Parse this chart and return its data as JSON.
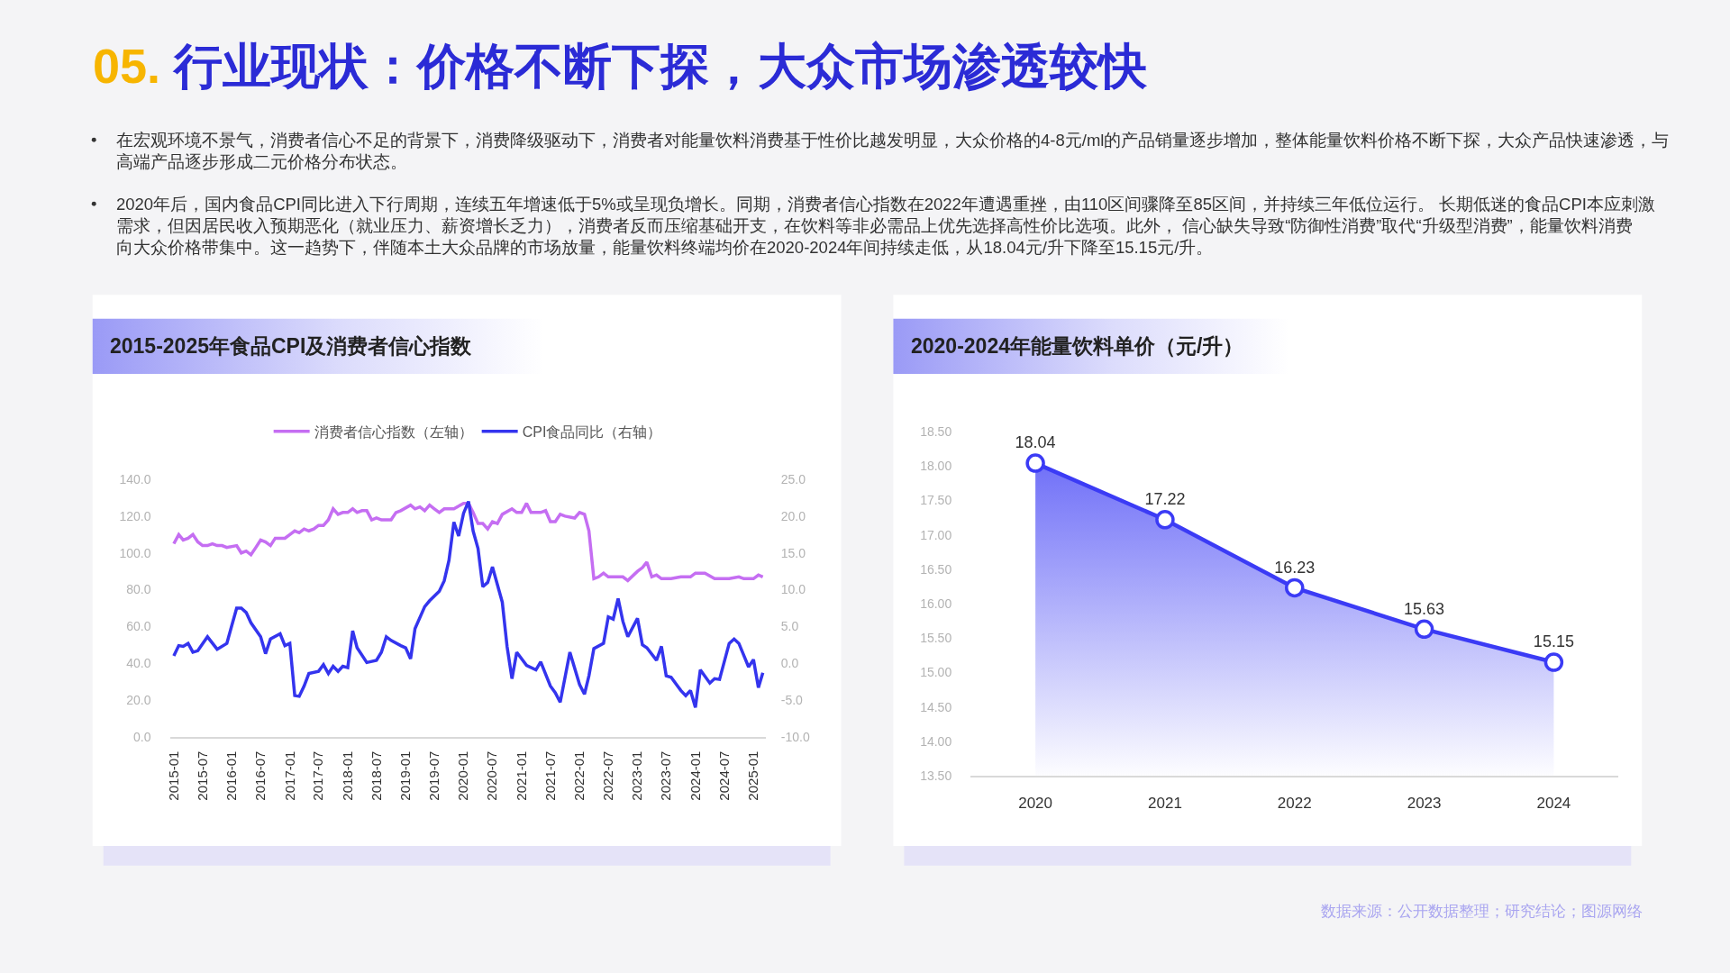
{
  "chart_data": [
    {
      "type": "other",
      "title": "05. 行业现状：价格不断下探，大众市场渗透较快",
      "annotations": [
        "在宏观环境不景气，消费者信心不足的背景下，消费降级驱动下，消费者对能量饮料消费基于性价比越发明显，大众价格的4-8元/ml的产品销量逐步增加，整体能量饮料价格不断下探，大众产品快速渗透，与高端产品逐步形成二元价格分布状态。",
        "2020年后，国内食品CPI同比进入下行周期，连续五年增速低于5%或呈现负增长。同期，消费者信心指数在2022年遭遇重挫，由110区间骤降至85区间，并持续三年低位运行。 长期低迷的食品CPI本应刺激需求，但因居民收入预期恶化（就业压力、薪资增长乏力），消费者反而压缩基础开支，在饮料等非必需品上优先选择高性价比选项。此外， 信心缺失导致“防御性消费”取代“升级型消费”，能量饮料消费向大众价格带集中。这一趋势下，伴随本土大众品牌的市场放量，能量饮料终端均价在2020-2024年间持续走低，从18.04元/升下降至15.15元/升。"
      ]
    },
    {
      "type": "line",
      "title": "2015-2025年食品CPI及消费者信心指数",
      "legend": "top",
      "series": [
        {
          "name": "消费者信心指数（左轴）",
          "color": "#c56ef2",
          "x": [
            "2015-01",
            "2015-02",
            "2015-03",
            "2015-04",
            "2015-05",
            "2015-06",
            "2015-07",
            "2015-08",
            "2015-09",
            "2015-10",
            "2015-11",
            "2015-12",
            "2016-02",
            "2016-03",
            "2016-04",
            "2016-05",
            "2016-06",
            "2016-07",
            "2016-08",
            "2016-09",
            "2016-10",
            "2016-11",
            "2016-12",
            "2017-01",
            "2017-02",
            "2017-03",
            "2017-04",
            "2017-05",
            "2017-06",
            "2017-07",
            "2017-08",
            "2017-09",
            "2017-10",
            "2017-11",
            "2017-12",
            "2018-01",
            "2018-02",
            "2018-03",
            "2018-04",
            "2018-05",
            "2018-06",
            "2018-07",
            "2018-08",
            "2018-10",
            "2018-11",
            "2018-12",
            "2019-02",
            "2019-03",
            "2019-04",
            "2019-05",
            "2019-06",
            "2019-07",
            "2019-08",
            "2019-09",
            "2019-11",
            "2020-01",
            "2020-02",
            "2020-03",
            "2020-04",
            "2020-05",
            "2020-06",
            "2020-07",
            "2020-08",
            "2020-09",
            "2020-11",
            "2020-12",
            "2021-01",
            "2021-02",
            "2021-03",
            "2021-05",
            "2021-06",
            "2021-07",
            "2021-08",
            "2021-09",
            "2021-10",
            "2021-12",
            "2022-01",
            "2022-02",
            "2022-03",
            "2022-04",
            "2022-05",
            "2022-06",
            "2022-07",
            "2022-09",
            "2022-10",
            "2022-11",
            "2023-01",
            "2023-02",
            "2023-03",
            "2023-04",
            "2023-05",
            "2023-06",
            "2023-08",
            "2023-10",
            "2023-12",
            "2024-01",
            "2024-03",
            "2024-05",
            "2024-08",
            "2024-10",
            "2024-11",
            "2025-01",
            "2025-02",
            "2025-03"
          ],
          "values": [
            105,
            110,
            107,
            108,
            110,
            106,
            104,
            104,
            105,
            104,
            104,
            103,
            104,
            100,
            101,
            99,
            103,
            107,
            106,
            104,
            108,
            108,
            108,
            110,
            112,
            111,
            113,
            112,
            113,
            115,
            115,
            118,
            124,
            121,
            122,
            122,
            124,
            122,
            123,
            123,
            118,
            119,
            118,
            118,
            122,
            123,
            126,
            124,
            125,
            123,
            126,
            124,
            122,
            124,
            124,
            127,
            127,
            122,
            116,
            116,
            113,
            117,
            116,
            121,
            124,
            122,
            122,
            127,
            122,
            122,
            123,
            117,
            117,
            121,
            120,
            119,
            122,
            121,
            112,
            86,
            87,
            89,
            87,
            87,
            87,
            85,
            90,
            92,
            95,
            87,
            88,
            86,
            86,
            87,
            87,
            89,
            89,
            86,
            86,
            87,
            86,
            86,
            88,
            87
          ]
        },
        {
          "name": "CPI食品同比（右轴）",
          "color": "#3434ee",
          "axis": "y2",
          "x": [
            "2015-01",
            "2015-02",
            "2015-03",
            "2015-04",
            "2015-05",
            "2015-06",
            "2015-08",
            "2015-10",
            "2015-12",
            "2016-01",
            "2016-02",
            "2016-03",
            "2016-04",
            "2016-05",
            "2016-07",
            "2016-08",
            "2016-09",
            "2016-11",
            "2016-12",
            "2017-01",
            "2017-02",
            "2017-03",
            "2017-04",
            "2017-05",
            "2017-07",
            "2017-08",
            "2017-09",
            "2017-10",
            "2017-11",
            "2017-12",
            "2018-01",
            "2018-02",
            "2018-03",
            "2018-05",
            "2018-07",
            "2018-08",
            "2018-09",
            "2018-10",
            "2018-12",
            "2019-01",
            "2019-02",
            "2019-03",
            "2019-05",
            "2019-06",
            "2019-08",
            "2019-09",
            "2019-10",
            "2019-11",
            "2019-12",
            "2020-01",
            "2020-02",
            "2020-03",
            "2020-04",
            "2020-05",
            "2020-06",
            "2020-07",
            "2020-09",
            "2020-10",
            "2020-11",
            "2020-12",
            "2021-02",
            "2021-04",
            "2021-05",
            "2021-07",
            "2021-08",
            "2021-09",
            "2021-11",
            "2022-01",
            "2022-02",
            "2022-03",
            "2022-04",
            "2022-06",
            "2022-07",
            "2022-08",
            "2022-09",
            "2022-10",
            "2022-11",
            "2023-01",
            "2023-02",
            "2023-03",
            "2023-05",
            "2023-06",
            "2023-07",
            "2023-08",
            "2023-10",
            "2023-11",
            "2023-12",
            "2024-01",
            "2024-02",
            "2024-04",
            "2024-05",
            "2024-06",
            "2024-08",
            "2024-09",
            "2024-10",
            "2024-12",
            "2025-01",
            "2025-02",
            "2025-03"
          ],
          "values": [
            1.0,
            2.4,
            2.3,
            2.7,
            1.5,
            1.7,
            3.6,
            1.9,
            2.7,
            5.1,
            7.5,
            7.5,
            6.9,
            5.5,
            3.6,
            1.3,
            3.3,
            4.0,
            2.4,
            2.7,
            -4.4,
            -4.5,
            -3.1,
            -1.4,
            -1.1,
            -0.2,
            -1.4,
            -0.4,
            -1.1,
            -0.4,
            -0.6,
            4.4,
            2.1,
            0.1,
            0.4,
            1.5,
            3.6,
            3.1,
            2.4,
            2.1,
            0.6,
            4.7,
            7.7,
            8.5,
            9.8,
            11.2,
            14.0,
            19.2,
            17.3,
            20.4,
            22.0,
            18.0,
            15.6,
            10.4,
            11.0,
            13.1,
            8.3,
            2.3,
            -2.1,
            1.5,
            -0.3,
            -0.9,
            0.2,
            -3.1,
            -4.0,
            -5.3,
            1.5,
            -2.9,
            -4.2,
            -1.7,
            2.0,
            2.7,
            6.3,
            6.0,
            8.8,
            5.7,
            3.6,
            6.1,
            2.5,
            2.1,
            0.4,
            2.3,
            -1.7,
            -1.9,
            -3.7,
            -4.4,
            -3.7,
            -6.0,
            -0.9,
            -2.7,
            -2.1,
            -2.2,
            2.7,
            3.3,
            2.7,
            -0.5,
            0.5,
            -3.3,
            -1.3
          ]
        }
      ],
      "xlim": [
        "2014-12-07",
        "2025-03-19"
      ],
      "xticks": [
        "2015-01",
        "2015-07",
        "2016-01",
        "2016-07",
        "2017-01",
        "2017-07",
        "2018-01",
        "2018-07",
        "2019-01",
        "2019-07",
        "2020-01",
        "2020-07",
        "2021-01",
        "2021-07",
        "2022-01",
        "2022-07",
        "2023-01",
        "2023-07",
        "2024-01",
        "2024-07",
        "2025-01"
      ],
      "ylim": [
        0,
        140
      ],
      "yticks": [
        {
          "value": 0,
          "label": "0.0"
        },
        {
          "value": 20,
          "label": "20.0"
        },
        {
          "value": 40,
          "label": "40.0"
        },
        {
          "value": 60,
          "label": "60.0"
        },
        {
          "value": 80,
          "label": "80.0"
        },
        {
          "value": 100,
          "label": "100.0"
        },
        {
          "value": 120,
          "label": "120.0"
        },
        {
          "value": 140,
          "label": "140.0"
        }
      ],
      "y2lim": [
        -10,
        25
      ],
      "y2ticks": [
        {
          "value": -10,
          "label": "-10.0"
        },
        {
          "value": -5,
          "label": "-5.0"
        },
        {
          "value": 0,
          "label": "0.0"
        },
        {
          "value": 5,
          "label": "5.0"
        },
        {
          "value": 10,
          "label": "10.0"
        },
        {
          "value": 15,
          "label": "15.0"
        },
        {
          "value": 20,
          "label": "20.0"
        },
        {
          "value": 25,
          "label": "25.0"
        }
      ]
    },
    {
      "type": "area",
      "title": "2020-2024年能量饮料单价（元/升）",
      "categories": [
        "2020",
        "2021",
        "2022",
        "2023",
        "2024"
      ],
      "values": [
        18.04,
        17.22,
        16.23,
        15.63,
        15.15
      ],
      "color": "#3b3bf5",
      "marker": "circle",
      "data_labels": true,
      "ylim": [
        13.5,
        18.5
      ],
      "yticks": [
        {
          "value": 13.5,
          "label": "13.50"
        },
        {
          "value": 14,
          "label": "14.00"
        },
        {
          "value": 14.5,
          "label": "14.50"
        },
        {
          "value": 15,
          "label": "15.00"
        },
        {
          "value": 15.5,
          "label": "15.50"
        },
        {
          "value": 16,
          "label": "16.00"
        },
        {
          "value": 16.5,
          "label": "16.50"
        },
        {
          "value": 17,
          "label": "17.00"
        },
        {
          "value": 17.5,
          "label": "17.50"
        },
        {
          "value": 18,
          "label": "18.00"
        },
        {
          "value": 18.5,
          "label": "18.50"
        }
      ],
      "annotations": [
        "数据来源：公开数据整理；研究结论；图源网络"
      ]
    }
  ]
}
